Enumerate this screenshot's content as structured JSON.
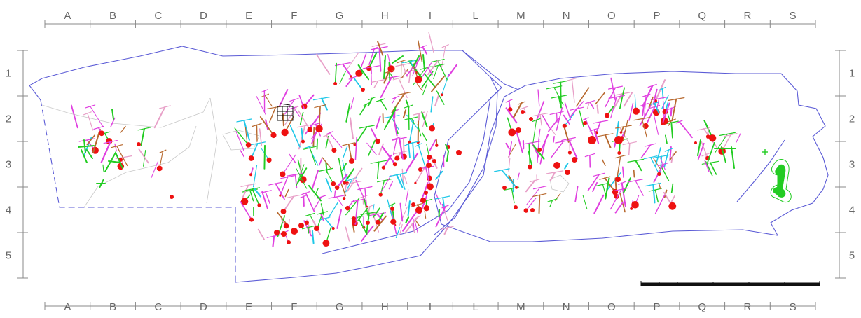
{
  "columns": [
    "A",
    "B",
    "C",
    "D",
    "E",
    "F",
    "G",
    "H",
    "I",
    "L",
    "M",
    "N",
    "O",
    "P",
    "Q",
    "R",
    "S"
  ],
  "rows": [
    "1",
    "2",
    "3",
    "4",
    "5"
  ],
  "colors": {
    "outline": "#5b5bd6",
    "grid": "#888888",
    "label": "#666666",
    "green": "#22cc22",
    "magenta": "#e040e0",
    "cyan": "#20c8e8",
    "red": "#ee1111",
    "brown": "#b86a30",
    "pink": "#e8a0c8",
    "black": "#111111"
  }
}
